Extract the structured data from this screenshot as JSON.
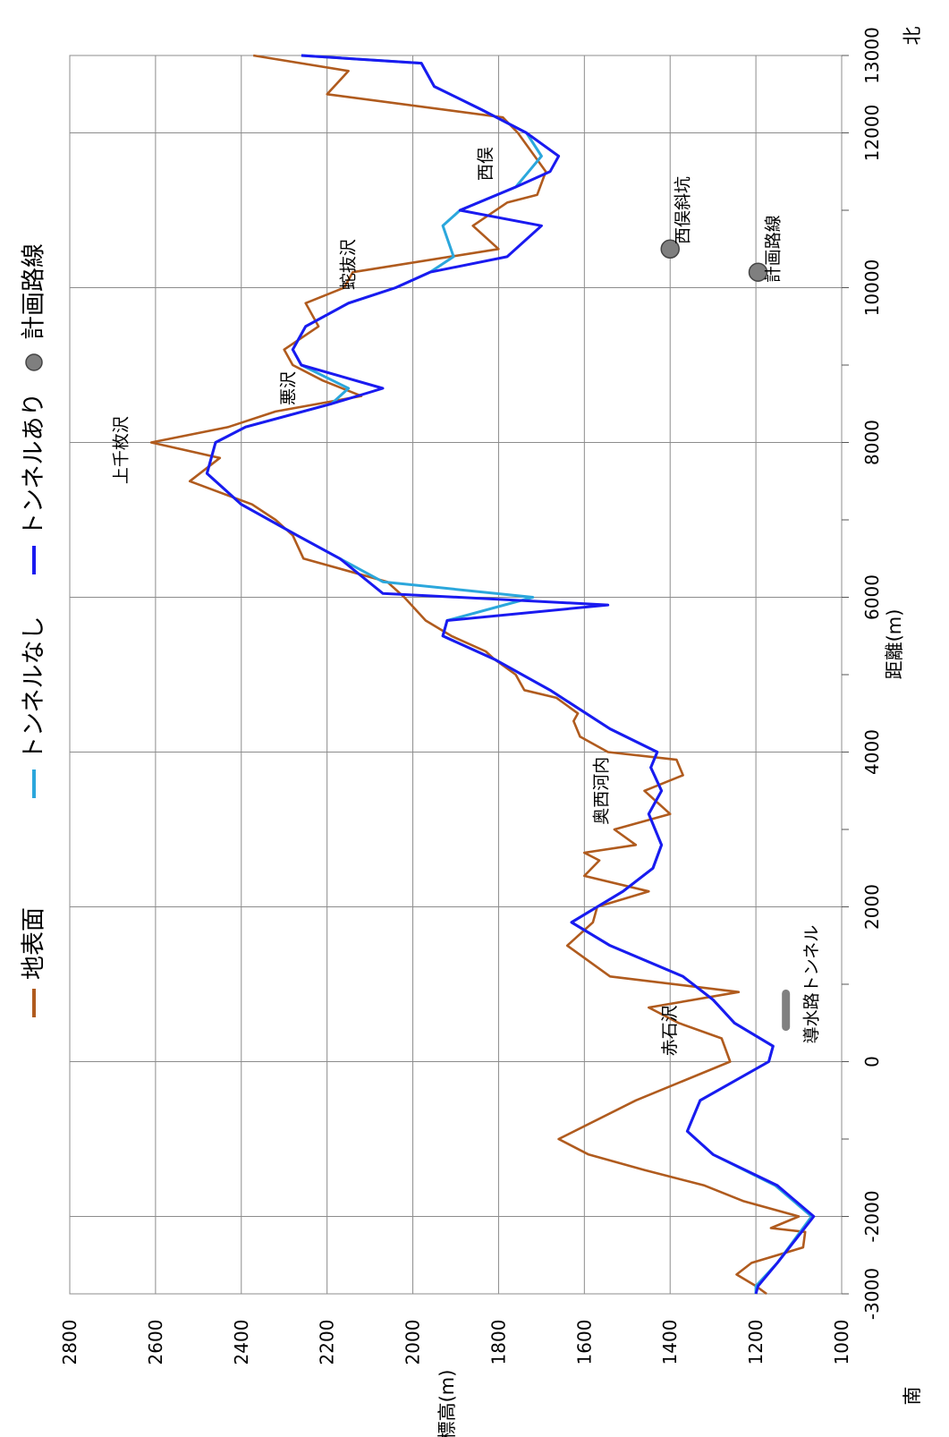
{
  "chart_data": {
    "type": "line",
    "title": "",
    "xlabel": "距離(m)",
    "ylabel": "標高(m)",
    "xlim": [
      -3000,
      13000
    ],
    "ylim": [
      1000,
      2800
    ],
    "x_ticks": [
      -3000,
      -2000,
      0,
      2000,
      4000,
      6000,
      8000,
      10000,
      12000,
      13000
    ],
    "y_ticks": [
      1000,
      1200,
      1400,
      1600,
      1800,
      2000,
      2200,
      2400,
      2600,
      2800
    ],
    "grid": true,
    "legend_position": "top",
    "direction_labels": {
      "south": "南",
      "north": "北"
    },
    "series": [
      {
        "name": "地表面",
        "color": "#b05b1e",
        "points": [
          [
            -3000,
            1175
          ],
          [
            -2900,
            1200
          ],
          [
            -2750,
            1245
          ],
          [
            -2600,
            1210
          ],
          [
            -2400,
            1090
          ],
          [
            -2200,
            1085
          ],
          [
            -2150,
            1165
          ],
          [
            -2000,
            1100
          ],
          [
            -1800,
            1230
          ],
          [
            -1600,
            1320
          ],
          [
            -1400,
            1460
          ],
          [
            -1200,
            1590
          ],
          [
            -1000,
            1660
          ],
          [
            -500,
            1480
          ],
          [
            0,
            1260
          ],
          [
            300,
            1280
          ],
          [
            500,
            1380
          ],
          [
            700,
            1450
          ],
          [
            900,
            1240
          ],
          [
            1100,
            1540
          ],
          [
            1500,
            1640
          ],
          [
            1800,
            1580
          ],
          [
            2000,
            1570
          ],
          [
            2200,
            1450
          ],
          [
            2400,
            1600
          ],
          [
            2600,
            1565
          ],
          [
            2700,
            1600
          ],
          [
            2800,
            1480
          ],
          [
            3000,
            1530
          ],
          [
            3200,
            1400
          ],
          [
            3500,
            1460
          ],
          [
            3700,
            1370
          ],
          [
            3900,
            1385
          ],
          [
            4000,
            1545
          ],
          [
            4200,
            1610
          ],
          [
            4400,
            1625
          ],
          [
            4500,
            1615
          ],
          [
            4700,
            1665
          ],
          [
            4800,
            1740
          ],
          [
            5000,
            1760
          ],
          [
            5200,
            1810
          ],
          [
            5300,
            1830
          ],
          [
            5500,
            1910
          ],
          [
            5700,
            1970
          ],
          [
            6000,
            2020
          ],
          [
            6200,
            2060
          ],
          [
            6500,
            2255
          ],
          [
            6800,
            2280
          ],
          [
            7000,
            2320
          ],
          [
            7200,
            2375
          ],
          [
            7500,
            2520
          ],
          [
            7800,
            2450
          ],
          [
            8000,
            2610
          ],
          [
            8200,
            2430
          ],
          [
            8400,
            2320
          ],
          [
            8600,
            2120
          ],
          [
            8800,
            2210
          ],
          [
            9000,
            2280
          ],
          [
            9200,
            2300
          ],
          [
            9500,
            2220
          ],
          [
            9800,
            2250
          ],
          [
            10000,
            2160
          ],
          [
            10200,
            2140
          ],
          [
            10500,
            1800
          ],
          [
            10800,
            1860
          ],
          [
            11100,
            1780
          ],
          [
            11200,
            1710
          ],
          [
            11500,
            1690
          ],
          [
            12000,
            1755
          ],
          [
            12200,
            1790
          ],
          [
            12500,
            2200
          ],
          [
            12800,
            2150
          ],
          [
            13000,
            2372
          ]
        ]
      },
      {
        "name": "トンネルなし",
        "color": "#2ba7dc",
        "points": [
          [
            -3000,
            1200
          ],
          [
            -2900,
            1200
          ],
          [
            -2600,
            1150
          ],
          [
            -2000,
            1070
          ],
          [
            -1600,
            1155
          ],
          [
            -1200,
            1300
          ],
          [
            -900,
            1360
          ],
          [
            -500,
            1330
          ],
          [
            0,
            1170
          ],
          [
            200,
            1160
          ],
          [
            500,
            1250
          ],
          [
            800,
            1300
          ],
          [
            1100,
            1370
          ],
          [
            1500,
            1540
          ],
          [
            1800,
            1630
          ],
          [
            2000,
            1570
          ],
          [
            2200,
            1510
          ],
          [
            2500,
            1440
          ],
          [
            2800,
            1420
          ],
          [
            3200,
            1450
          ],
          [
            3500,
            1420
          ],
          [
            3800,
            1445
          ],
          [
            4000,
            1430
          ],
          [
            4300,
            1540
          ],
          [
            4800,
            1680
          ],
          [
            5200,
            1810
          ],
          [
            5500,
            1930
          ],
          [
            5700,
            1920
          ],
          [
            6000,
            1720
          ],
          [
            6200,
            2070
          ],
          [
            6500,
            2170
          ],
          [
            6800,
            2270
          ],
          [
            7200,
            2400
          ],
          [
            7600,
            2480
          ],
          [
            8000,
            2460
          ],
          [
            8200,
            2390
          ],
          [
            8500,
            2190
          ],
          [
            8700,
            2150
          ],
          [
            9000,
            2260
          ],
          [
            9200,
            2280
          ],
          [
            9500,
            2250
          ],
          [
            9800,
            2150
          ],
          [
            10000,
            2040
          ],
          [
            10200,
            1960
          ],
          [
            10400,
            1905
          ],
          [
            10800,
            1930
          ],
          [
            11000,
            1890
          ],
          [
            11300,
            1760
          ],
          [
            11500,
            1730
          ],
          [
            11700,
            1700
          ],
          [
            12000,
            1735
          ],
          [
            12300,
            1840
          ],
          [
            12600,
            1950
          ],
          [
            12900,
            1980
          ],
          [
            13000,
            2260
          ]
        ]
      },
      {
        "name": "トンネルあり",
        "color": "#1a1af0",
        "points": [
          [
            -3000,
            1200
          ],
          [
            -2900,
            1195
          ],
          [
            -2600,
            1150
          ],
          [
            -2000,
            1065
          ],
          [
            -1600,
            1150
          ],
          [
            -1200,
            1300
          ],
          [
            -900,
            1360
          ],
          [
            -500,
            1330
          ],
          [
            0,
            1170
          ],
          [
            200,
            1160
          ],
          [
            500,
            1250
          ],
          [
            800,
            1300
          ],
          [
            1100,
            1370
          ],
          [
            1500,
            1540
          ],
          [
            1800,
            1630
          ],
          [
            2000,
            1570
          ],
          [
            2200,
            1510
          ],
          [
            2500,
            1440
          ],
          [
            2800,
            1420
          ],
          [
            3200,
            1450
          ],
          [
            3500,
            1420
          ],
          [
            3800,
            1445
          ],
          [
            4000,
            1430
          ],
          [
            4300,
            1540
          ],
          [
            4800,
            1680
          ],
          [
            5200,
            1810
          ],
          [
            5500,
            1930
          ],
          [
            5700,
            1920
          ],
          [
            5900,
            1545
          ],
          [
            6050,
            2070
          ],
          [
            6500,
            2170
          ],
          [
            6800,
            2270
          ],
          [
            7200,
            2400
          ],
          [
            7600,
            2480
          ],
          [
            8000,
            2460
          ],
          [
            8200,
            2390
          ],
          [
            8500,
            2190
          ],
          [
            8700,
            2070
          ],
          [
            9000,
            2260
          ],
          [
            9200,
            2280
          ],
          [
            9500,
            2250
          ],
          [
            9800,
            2150
          ],
          [
            10000,
            2040
          ],
          [
            10200,
            1960
          ],
          [
            10400,
            1780
          ],
          [
            10800,
            1700
          ],
          [
            11000,
            1890
          ],
          [
            11300,
            1760
          ],
          [
            11500,
            1680
          ],
          [
            11700,
            1660
          ],
          [
            12000,
            1735
          ],
          [
            12300,
            1840
          ],
          [
            12600,
            1950
          ],
          [
            12900,
            1980
          ],
          [
            13000,
            2260
          ]
        ]
      },
      {
        "name": "計画路線",
        "color": "#7f7f7f",
        "marker": "circle",
        "points": [
          [
            10500,
            1400
          ],
          [
            10200,
            1195
          ]
        ]
      }
    ],
    "annotations": [
      {
        "text": "赤石沢",
        "x": 400,
        "y": 1400
      },
      {
        "text": "導水路トンネル",
        "x": 1000,
        "y": 1070
      },
      {
        "text": "奥西河内",
        "x": 3500,
        "y": 1560
      },
      {
        "text": "上千枚沢",
        "x": 7900,
        "y": 2680
      },
      {
        "text": "悪沢",
        "x": 8700,
        "y": 2290
      },
      {
        "text": "蛇抜沢",
        "x": 10300,
        "y": 2150
      },
      {
        "text": "西俣",
        "x": 11600,
        "y": 1830
      },
      {
        "text": "西俣斜坑",
        "x": 11000,
        "y": 1370
      },
      {
        "text": "計画路線",
        "x": 10500,
        "y": 1160
      }
    ]
  }
}
